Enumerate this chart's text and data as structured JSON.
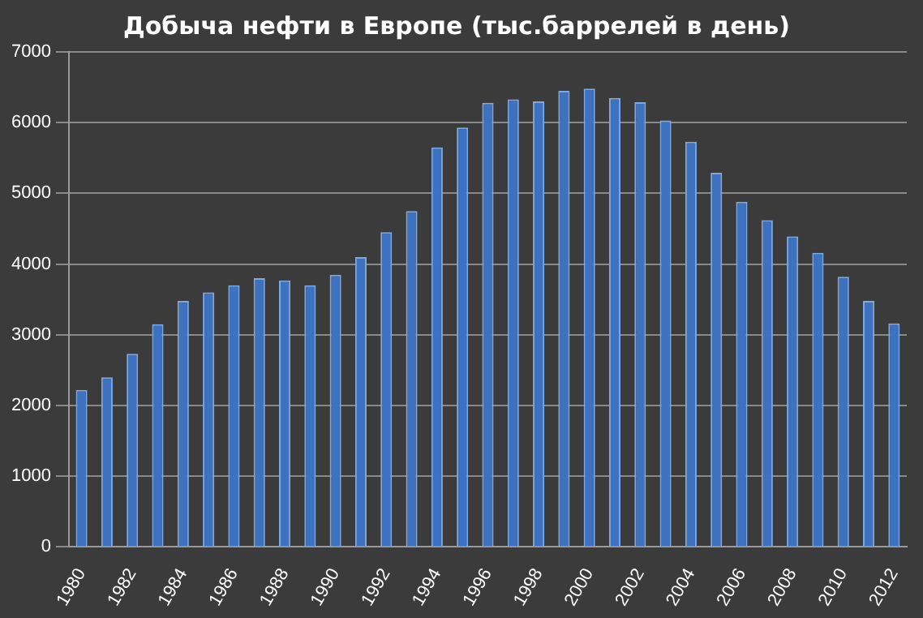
{
  "chart_data": {
    "type": "bar",
    "title": "Добыча нефти в Европе (тыс.баррелей в день)",
    "categories": [
      "1980",
      null,
      "1982",
      null,
      "1984",
      null,
      "1986",
      null,
      "1988",
      null,
      "1990",
      null,
      "1992",
      null,
      "1994",
      null,
      "1996",
      null,
      "1998",
      null,
      "2000",
      null,
      "2002",
      null,
      "2004",
      null,
      "2006",
      null,
      "2008",
      null,
      "2010",
      null,
      "2012"
    ],
    "values": [
      2220,
      2400,
      2730,
      3150,
      3480,
      3600,
      3700,
      3800,
      3770,
      3700,
      3850,
      4100,
      4450,
      4750,
      5650,
      5930,
      6280,
      6330,
      6300,
      6450,
      6480,
      6350,
      6290,
      6030,
      5730,
      5290,
      4880,
      4620,
      4390,
      4160,
      3820,
      3480,
      3160
    ],
    "color": "#3d72c0",
    "ylim": [
      0,
      7000
    ],
    "yticks": [
      0,
      1000,
      2000,
      3000,
      4000,
      5000,
      6000,
      7000
    ],
    "grid": "y"
  }
}
